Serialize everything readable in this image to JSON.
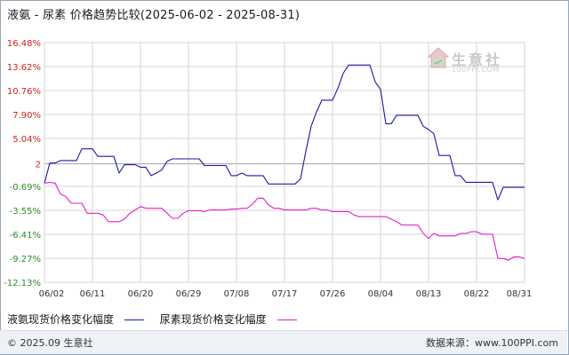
{
  "title": "液氨 - 尿素 价格趋势比较(2025-06-02 - 2025-08-31)",
  "watermark": {
    "name": "生意社",
    "url": "100PPI.COM"
  },
  "footer": {
    "copyright": "© 2025.09 生意社",
    "source": "数据来源：www.100PPI.com"
  },
  "colors": {
    "series1": "#1a1aa6",
    "series2": "#e020c8",
    "grid": "#d6d6d6",
    "baseline": "#a0a0a0"
  },
  "chart_data": {
    "type": "line",
    "ylim": [
      -12.13,
      16.48
    ],
    "xlim": [
      0,
      90
    ],
    "y_ticks": [
      {
        "value": 16.48,
        "label": "16.48%"
      },
      {
        "value": 13.62,
        "label": "13.62%"
      },
      {
        "value": 10.76,
        "label": "10.76%"
      },
      {
        "value": 7.9,
        "label": "7.90%"
      },
      {
        "value": 5.04,
        "label": "5.04%"
      },
      {
        "value": 2,
        "label": "2"
      },
      {
        "value": -0.69,
        "label": "-0.69%"
      },
      {
        "value": -3.55,
        "label": "-3.55%"
      },
      {
        "value": -6.41,
        "label": "-6.41%"
      },
      {
        "value": -9.27,
        "label": "-9.27%"
      },
      {
        "value": -12.13,
        "label": "-12.13%"
      }
    ],
    "baseline": 2,
    "x_ticks": [
      {
        "value": 0,
        "label": "06/02"
      },
      {
        "value": 9,
        "label": "06/11"
      },
      {
        "value": 18,
        "label": "06/20"
      },
      {
        "value": 27,
        "label": "06/29"
      },
      {
        "value": 36,
        "label": "07/08"
      },
      {
        "value": 45,
        "label": "07/17"
      },
      {
        "value": 54,
        "label": "07/26"
      },
      {
        "value": 63,
        "label": "08/04"
      },
      {
        "value": 72,
        "label": "08/13"
      },
      {
        "value": 81,
        "label": "08/22"
      },
      {
        "value": 90,
        "label": "08/31"
      }
    ],
    "grid": true,
    "legend_position": "bottom-left",
    "series": [
      {
        "name": "液氨现货价格变化幅度",
        "points": [
          [
            0,
            -0.3
          ],
          [
            1,
            2.1
          ],
          [
            2,
            2.1
          ],
          [
            3,
            2.4
          ],
          [
            4,
            2.4
          ],
          [
            5,
            2.4
          ],
          [
            6,
            2.4
          ],
          [
            7,
            3.8
          ],
          [
            8,
            3.8
          ],
          [
            9,
            3.8
          ],
          [
            10,
            2.9
          ],
          [
            11,
            2.9
          ],
          [
            12,
            2.9
          ],
          [
            13,
            2.9
          ],
          [
            14,
            0.9
          ],
          [
            15,
            1.9
          ],
          [
            16,
            1.9
          ],
          [
            17,
            1.9
          ],
          [
            18,
            1.6
          ],
          [
            19,
            1.6
          ],
          [
            20,
            0.6
          ],
          [
            21,
            0.9
          ],
          [
            22,
            1.3
          ],
          [
            23,
            2.3
          ],
          [
            24,
            2.6
          ],
          [
            25,
            2.6
          ],
          [
            26,
            2.6
          ],
          [
            27,
            2.6
          ],
          [
            28,
            2.6
          ],
          [
            29,
            2.6
          ],
          [
            30,
            1.8
          ],
          [
            31,
            1.8
          ],
          [
            32,
            1.8
          ],
          [
            33,
            1.8
          ],
          [
            34,
            1.8
          ],
          [
            35,
            0.6
          ],
          [
            36,
            0.6
          ],
          [
            37,
            0.9
          ],
          [
            38,
            0.6
          ],
          [
            39,
            0.6
          ],
          [
            40,
            0.6
          ],
          [
            41,
            0.6
          ],
          [
            42,
            -0.4
          ],
          [
            43,
            -0.4
          ],
          [
            44,
            -0.4
          ],
          [
            45,
            -0.4
          ],
          [
            46,
            -0.4
          ],
          [
            47,
            -0.4
          ],
          [
            48,
            0.2
          ],
          [
            49,
            3.5
          ],
          [
            50,
            6.5
          ],
          [
            51,
            8.2
          ],
          [
            52,
            9.6
          ],
          [
            53,
            9.6
          ],
          [
            54,
            9.6
          ],
          [
            55,
            11.0
          ],
          [
            56,
            12.8
          ],
          [
            57,
            13.8
          ],
          [
            58,
            13.8
          ],
          [
            59,
            13.8
          ],
          [
            60,
            13.8
          ],
          [
            61,
            13.8
          ],
          [
            62,
            11.8
          ],
          [
            63,
            10.9
          ],
          [
            64,
            6.8
          ],
          [
            65,
            6.8
          ],
          [
            66,
            7.8
          ],
          [
            67,
            7.8
          ],
          [
            68,
            7.8
          ],
          [
            69,
            7.8
          ],
          [
            70,
            7.8
          ],
          [
            71,
            6.5
          ],
          [
            72,
            6.1
          ],
          [
            73,
            5.6
          ],
          [
            74,
            3.0
          ],
          [
            75,
            3.0
          ],
          [
            76,
            3.0
          ],
          [
            77,
            0.6
          ],
          [
            78,
            0.6
          ],
          [
            79,
            -0.2
          ],
          [
            80,
            -0.2
          ],
          [
            81,
            -0.2
          ],
          [
            82,
            -0.2
          ],
          [
            83,
            -0.2
          ],
          [
            84,
            -0.2
          ],
          [
            85,
            -2.3
          ],
          [
            86,
            -0.8
          ],
          [
            87,
            -0.8
          ],
          [
            88,
            -0.8
          ],
          [
            89,
            -0.8
          ],
          [
            90,
            -0.8
          ]
        ]
      },
      {
        "name": "尿素现货价格变化幅度",
        "points": [
          [
            0,
            -0.3
          ],
          [
            1,
            -0.2
          ],
          [
            2,
            -0.3
          ],
          [
            3,
            -1.6
          ],
          [
            4,
            -1.9
          ],
          [
            5,
            -2.7
          ],
          [
            6,
            -2.7
          ],
          [
            7,
            -2.7
          ],
          [
            8,
            -3.9
          ],
          [
            9,
            -3.9
          ],
          [
            10,
            -3.9
          ],
          [
            11,
            -4.1
          ],
          [
            12,
            -4.9
          ],
          [
            13,
            -4.9
          ],
          [
            14,
            -4.9
          ],
          [
            15,
            -4.6
          ],
          [
            16,
            -3.9
          ],
          [
            17,
            -3.5
          ],
          [
            18,
            -3.1
          ],
          [
            19,
            -3.3
          ],
          [
            20,
            -3.3
          ],
          [
            21,
            -3.3
          ],
          [
            22,
            -3.3
          ],
          [
            23,
            -3.9
          ],
          [
            24,
            -4.5
          ],
          [
            25,
            -4.5
          ],
          [
            26,
            -3.9
          ],
          [
            27,
            -3.6
          ],
          [
            28,
            -3.6
          ],
          [
            29,
            -3.6
          ],
          [
            30,
            -3.7
          ],
          [
            31,
            -3.5
          ],
          [
            32,
            -3.5
          ],
          [
            33,
            -3.5
          ],
          [
            34,
            -3.5
          ],
          [
            35,
            -3.4
          ],
          [
            36,
            -3.4
          ],
          [
            37,
            -3.3
          ],
          [
            38,
            -3.3
          ],
          [
            39,
            -2.8
          ],
          [
            40,
            -2.1
          ],
          [
            41,
            -2.1
          ],
          [
            42,
            -2.9
          ],
          [
            43,
            -3.3
          ],
          [
            44,
            -3.3
          ],
          [
            45,
            -3.5
          ],
          [
            46,
            -3.5
          ],
          [
            47,
            -3.5
          ],
          [
            48,
            -3.5
          ],
          [
            49,
            -3.5
          ],
          [
            50,
            -3.3
          ],
          [
            51,
            -3.3
          ],
          [
            52,
            -3.5
          ],
          [
            53,
            -3.5
          ],
          [
            54,
            -3.7
          ],
          [
            55,
            -3.7
          ],
          [
            56,
            -3.7
          ],
          [
            57,
            -3.7
          ],
          [
            58,
            -4.1
          ],
          [
            59,
            -4.3
          ],
          [
            60,
            -4.3
          ],
          [
            61,
            -4.3
          ],
          [
            62,
            -4.3
          ],
          [
            63,
            -4.3
          ],
          [
            64,
            -4.3
          ],
          [
            65,
            -4.6
          ],
          [
            66,
            -4.9
          ],
          [
            67,
            -5.3
          ],
          [
            68,
            -5.3
          ],
          [
            69,
            -5.3
          ],
          [
            70,
            -5.3
          ],
          [
            71,
            -6.3
          ],
          [
            72,
            -6.9
          ],
          [
            73,
            -6.3
          ],
          [
            74,
            -6.6
          ],
          [
            75,
            -6.6
          ],
          [
            76,
            -6.6
          ],
          [
            77,
            -6.6
          ],
          [
            78,
            -6.3
          ],
          [
            79,
            -6.3
          ],
          [
            80,
            -6.1
          ],
          [
            81,
            -6.1
          ],
          [
            82,
            -6.4
          ],
          [
            83,
            -6.4
          ],
          [
            84,
            -6.4
          ],
          [
            85,
            -9.3
          ],
          [
            86,
            -9.3
          ],
          [
            87,
            -9.5
          ],
          [
            88,
            -9.1
          ],
          [
            89,
            -9.1
          ],
          [
            90,
            -9.3
          ]
        ]
      }
    ]
  }
}
